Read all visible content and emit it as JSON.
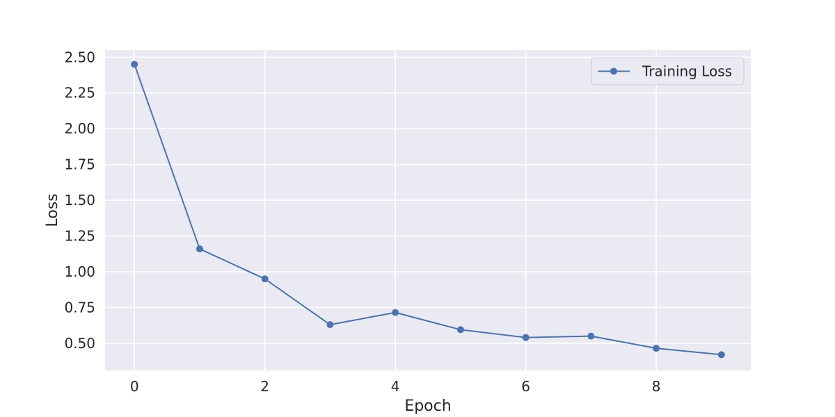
{
  "chart_data": {
    "type": "line",
    "title": "",
    "xlabel": "Epoch",
    "ylabel": "Loss",
    "xlim": [
      -0.45,
      9.45
    ],
    "ylim": [
      0.31,
      2.55
    ],
    "xticks": [
      0,
      2,
      4,
      6,
      8
    ],
    "xtick_labels": [
      "0",
      "2",
      "4",
      "6",
      "8"
    ],
    "yticks": [
      0.5,
      0.75,
      1.0,
      1.25,
      1.5,
      1.75,
      2.0,
      2.25,
      2.5
    ],
    "ytick_labels": [
      "0.50",
      "0.75",
      "1.00",
      "1.25",
      "1.50",
      "1.75",
      "2.00",
      "2.25",
      "2.50"
    ],
    "grid": true,
    "legend_position": "top-right",
    "series": [
      {
        "name": "Training Loss",
        "color": "#4C72B0",
        "marker": "circle",
        "x": [
          0,
          1,
          2,
          3,
          4,
          5,
          6,
          7,
          8,
          9
        ],
        "y": [
          2.45,
          1.16,
          0.95,
          0.63,
          0.715,
          0.595,
          0.54,
          0.55,
          0.465,
          0.42
        ]
      }
    ],
    "style": {
      "plot_background": "#EAEAF2",
      "grid_color": "#FFFFFF"
    }
  }
}
